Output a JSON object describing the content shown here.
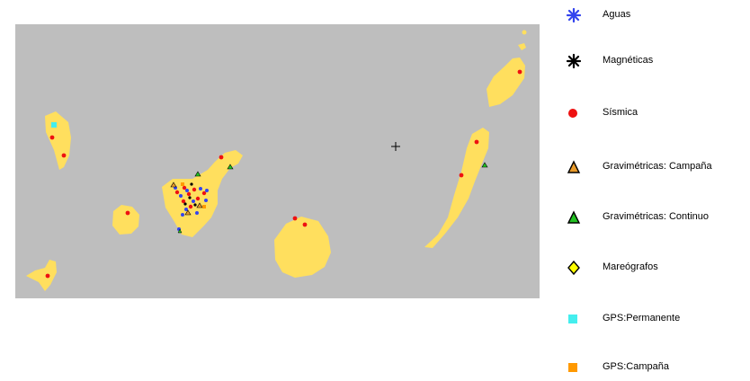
{
  "colors": {
    "sea": "#bebebe",
    "land": "#ffdf5e",
    "aguas": "#3344ee",
    "magneticas": "#000000",
    "sismica": "#ee1111",
    "grav_campana": "#e89a2a",
    "grav_continuo": "#22c022",
    "mareografos": "#ffff00",
    "gps_permanente": "#44eeee",
    "gps_campana": "#ff9900"
  },
  "legend": [
    {
      "label": "Aguas",
      "icon": "blue-asterisk-icon"
    },
    {
      "label": "Magnéticas",
      "icon": "black-asterisk-icon"
    },
    {
      "label": "Sísmica",
      "icon": "red-dot-icon"
    },
    {
      "label": "Gravimétricas: Campaña",
      "icon": "orange-triangle-icon"
    },
    {
      "label": "Gravimétricas: Continuo",
      "icon": "green-triangle-icon"
    },
    {
      "label": "Mareógrafos",
      "icon": "yellow-diamond-icon"
    },
    {
      "label": "GPS:Permanente",
      "icon": "cyan-square-icon"
    },
    {
      "label": "GPS:Campaña",
      "icon": "orange-square-icon"
    }
  ]
}
